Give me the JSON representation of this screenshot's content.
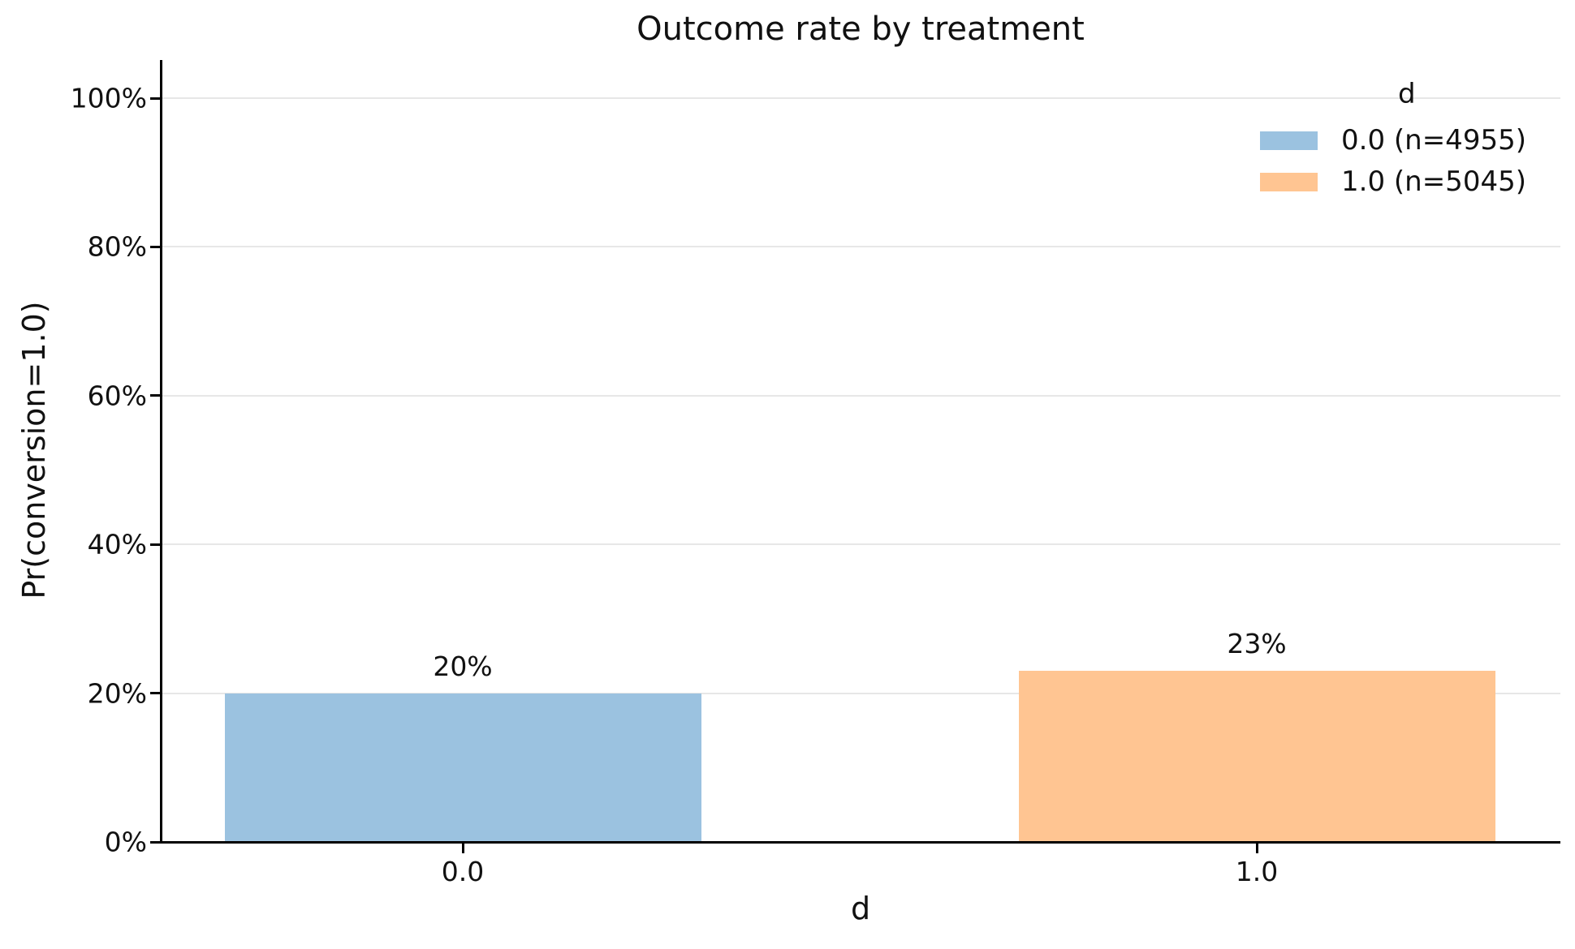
{
  "chart_data": {
    "type": "bar",
    "title": "Outcome rate by treatment",
    "xlabel": "d",
    "ylabel": "Pr(conversion=1.0)",
    "categories": [
      "0.0",
      "1.0"
    ],
    "values": [
      20,
      23
    ],
    "bar_labels": [
      "20%",
      "23%"
    ],
    "bar_colors": [
      "#9bc2e0",
      "#ffc592"
    ],
    "ylim": [
      0,
      105
    ],
    "ytick_values": [
      0,
      20,
      40,
      60,
      80,
      100
    ],
    "ytick_labels": [
      "0%",
      "20%",
      "40%",
      "60%",
      "80%",
      "100%"
    ],
    "grid": "horizontal",
    "legend": {
      "position": "upper right",
      "title": "d",
      "entries": [
        {
          "label": "0.0 (n=4955)",
          "color": "#9bc2e0"
        },
        {
          "label": "1.0 (n=5045)",
          "color": "#ffc592"
        }
      ]
    }
  }
}
